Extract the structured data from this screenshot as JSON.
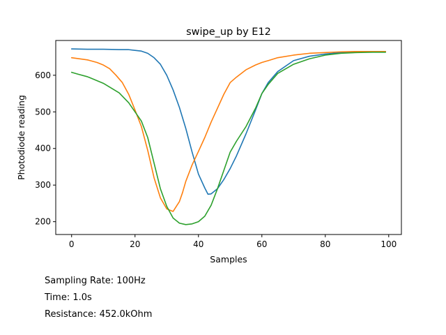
{
  "chart_data": {
    "type": "line",
    "title": "swipe_up by E12",
    "xlabel": "Samples",
    "ylabel": "Photodiode reading",
    "xlim": [
      -5,
      104
    ],
    "ylim": [
      165,
      695
    ],
    "xticks": [
      0,
      20,
      40,
      60,
      80,
      100
    ],
    "yticks": [
      200,
      300,
      400,
      500,
      600
    ],
    "grid": false,
    "legend": "none",
    "series": [
      {
        "name": "blue",
        "color": "#1f77b4",
        "x": [
          0,
          5,
          10,
          15,
          18,
          20,
          22,
          24,
          26,
          28,
          30,
          32,
          34,
          36,
          38,
          40,
          42,
          43,
          44,
          46,
          48,
          50,
          52,
          55,
          58,
          60,
          62,
          65,
          70,
          75,
          80,
          85,
          90,
          95,
          99
        ],
        "values": [
          672,
          671,
          671,
          670,
          670,
          668,
          666,
          660,
          648,
          630,
          600,
          560,
          512,
          455,
          390,
          330,
          292,
          275,
          276,
          290,
          315,
          345,
          380,
          440,
          505,
          550,
          580,
          610,
          640,
          652,
          658,
          662,
          664,
          665,
          665
        ]
      },
      {
        "name": "orange",
        "color": "#ff7f0e",
        "x": [
          0,
          5,
          8,
          10,
          12,
          14,
          16,
          18,
          20,
          22,
          24,
          26,
          28,
          30,
          32,
          34,
          35,
          36,
          38,
          40,
          42,
          44,
          46,
          48,
          50,
          52,
          55,
          58,
          60,
          62,
          65,
          70,
          75,
          80,
          85,
          90,
          95,
          99
        ],
        "values": [
          648,
          642,
          635,
          628,
          618,
          600,
          580,
          548,
          505,
          460,
          395,
          320,
          265,
          235,
          228,
          255,
          280,
          310,
          355,
          392,
          430,
          472,
          510,
          548,
          580,
          595,
          615,
          628,
          635,
          640,
          648,
          655,
          660,
          662,
          664,
          665,
          665,
          665
        ]
      },
      {
        "name": "green",
        "color": "#2ca02c",
        "x": [
          0,
          2,
          5,
          10,
          15,
          18,
          20,
          22,
          24,
          26,
          28,
          30,
          32,
          34,
          36,
          38,
          40,
          42,
          44,
          46,
          48,
          50,
          52,
          55,
          58,
          60,
          62,
          65,
          70,
          75,
          80,
          85,
          90,
          95,
          99
        ],
        "values": [
          608,
          603,
          596,
          578,
          552,
          525,
          500,
          475,
          430,
          360,
          290,
          242,
          210,
          196,
          192,
          194,
          200,
          215,
          245,
          290,
          340,
          390,
          420,
          460,
          510,
          550,
          575,
          605,
          630,
          645,
          655,
          660,
          662,
          663,
          663
        ]
      }
    ]
  },
  "info": {
    "sampling_rate": "Sampling Rate: 100Hz",
    "time": "Time: 1.0s",
    "resistance": "Resistance: 452.0kOhm"
  }
}
